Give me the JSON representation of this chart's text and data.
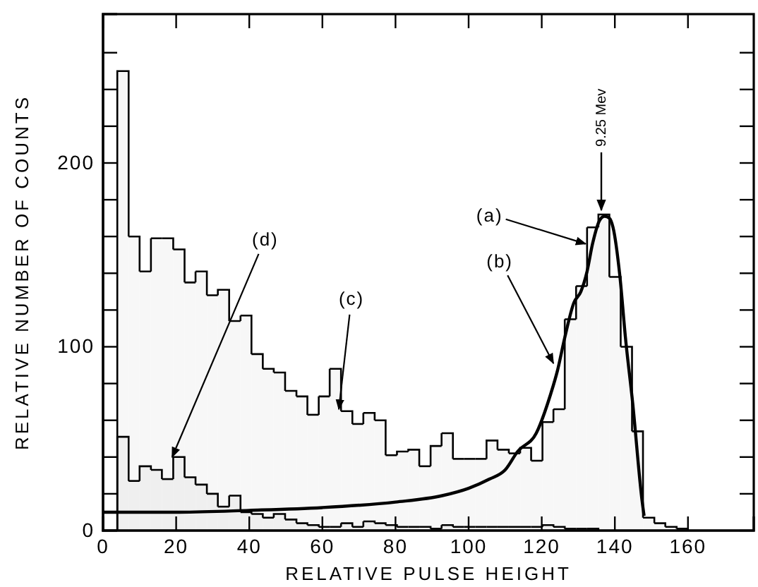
{
  "chart_data": {
    "type": "histogram",
    "xlabel": "RELATIVE PULSE HEIGHT",
    "ylabel": "RELATIVE NUMBER OF COUNTS",
    "xlim": [
      0,
      178
    ],
    "ylim": [
      0,
      281
    ],
    "xticks": [
      0,
      20,
      40,
      60,
      80,
      100,
      120,
      140,
      160
    ],
    "yticks": [
      0,
      {
        "value": 20,
        "label": null
      },
      {
        "value": 40,
        "label": null
      },
      {
        "value": 60,
        "label": null
      },
      {
        "value": 80,
        "label": null
      },
      100,
      {
        "value": 120,
        "label": null
      },
      {
        "value": 140,
        "label": null
      },
      {
        "value": 160,
        "label": null
      },
      {
        "value": 180,
        "label": null
      },
      200,
      {
        "value": 220,
        "label": null
      },
      {
        "value": 240,
        "label": null
      },
      {
        "value": 260,
        "label": null
      }
    ],
    "bins": [
      3.9,
      7.0,
      10.0,
      13.1,
      16.1,
      19.2,
      22.3,
      25.3,
      28.4,
      31.4,
      34.5,
      37.6,
      40.6,
      43.7,
      46.7,
      49.8,
      52.9,
      55.9,
      59.0,
      62.0,
      65.1,
      68.2,
      71.2,
      74.3,
      77.3,
      80.4,
      83.5,
      86.5,
      89.6,
      92.6,
      95.7,
      98.8,
      101.8,
      104.9,
      107.9,
      111.0,
      114.1,
      117.1,
      120.2,
      123.2,
      126.3,
      129.4,
      132.4,
      135.5,
      138.5,
      141.6,
      144.7,
      147.7,
      150.8,
      153.8,
      156.9,
      160.0
    ],
    "series": [
      {
        "color": "#000000",
        "values": [
          250,
          160,
          141,
          159,
          159,
          153,
          135,
          141,
          128,
          131,
          114,
          117,
          96,
          88,
          86,
          76,
          73,
          63,
          73,
          88,
          65,
          58,
          64,
          60,
          41,
          43,
          44,
          35,
          46,
          53,
          39,
          39,
          39,
          49,
          44,
          42,
          45,
          38,
          59,
          66,
          115,
          133,
          165,
          172,
          138,
          100,
          54,
          7,
          4,
          2,
          1
        ]
      },
      {
        "color": "#000000",
        "values": [
          51,
          27,
          35,
          33,
          28,
          40,
          29,
          25,
          20,
          13,
          19,
          10,
          9,
          7,
          9,
          6,
          4,
          3,
          2,
          2,
          4,
          2,
          5,
          4,
          3,
          2,
          2,
          2,
          1,
          3,
          2,
          2,
          2,
          2,
          2,
          2,
          2,
          2,
          3,
          2,
          1,
          1,
          1,
          0,
          0,
          0,
          0,
          0,
          0,
          0,
          0
        ]
      },
      {
        "type": "line",
        "color": "#000000",
        "x": [
          0,
          20,
          40,
          60,
          80,
          92.8,
          100,
          105.7,
          110,
          113.4,
          118.5,
          122.4,
          124.3,
          126.3,
          128.8,
          130.7,
          132.4,
          133.9,
          135.9,
          137.2,
          138.5,
          139.5,
          141.4,
          142.9,
          144.9,
          147.4,
          148
        ],
        "values": [
          10,
          10,
          11,
          12.5,
          15.5,
          19,
          23,
          28,
          33,
          43,
          53,
          74,
          87,
          105,
          124,
          130,
          141,
          156,
          169,
          171,
          170,
          165,
          138,
          105,
          69,
          17,
          8
        ]
      }
    ],
    "annotations": [
      {
        "text": "(a)",
        "x": 132,
        "y": 156
      },
      {
        "text": "(b)",
        "x": 123.2,
        "y": 91
      },
      {
        "text": "(c)",
        "x": 64.5,
        "y": 66
      },
      {
        "text": "(d)",
        "x": 18.9,
        "y": 40
      },
      {
        "text": "9.25 Mev",
        "x": 136.3,
        "y": 172
      }
    ],
    "grid": false
  }
}
